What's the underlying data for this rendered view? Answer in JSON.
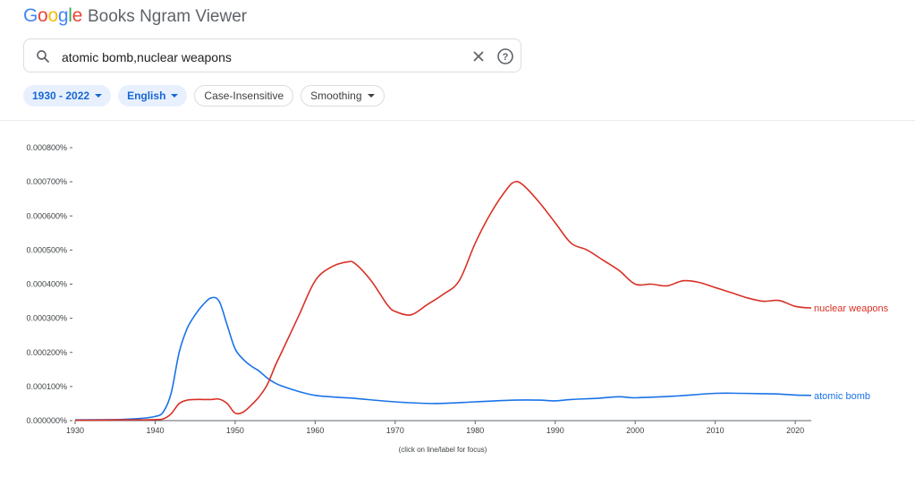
{
  "header": {
    "logo_letters": [
      {
        "char": "G",
        "color": "#4285F4"
      },
      {
        "char": "o",
        "color": "#EA4335"
      },
      {
        "char": "o",
        "color": "#FBBC05"
      },
      {
        "char": "g",
        "color": "#4285F4"
      },
      {
        "char": "l",
        "color": "#34A853"
      },
      {
        "char": "e",
        "color": "#EA4335"
      }
    ],
    "app_name": "Books Ngram Viewer"
  },
  "search": {
    "value": "atomic bomb,nuclear weapons",
    "icon": "search-icon",
    "clear_icon": "close-icon",
    "help_icon": "help-icon"
  },
  "filters": {
    "date_range": "1930 - 2022",
    "corpus": "English",
    "case": "Case-Insensitive",
    "smoothing": "Smoothing"
  },
  "hint": "(click on line/label for focus)",
  "chart_data": {
    "type": "line",
    "x_range": [
      1930,
      2022
    ],
    "ylim": [
      0,
      0.0008
    ],
    "y_ticks": [
      "0.000000%",
      "0.000100%",
      "0.000200%",
      "0.000300%",
      "0.000400%",
      "0.000500%",
      "0.000600%",
      "0.000700%",
      "0.000800%"
    ],
    "x_ticks": [
      "1930",
      "1940",
      "1950",
      "1960",
      "1970",
      "1980",
      "1990",
      "2000",
      "2010",
      "2020"
    ],
    "series": [
      {
        "name": "atomic bomb",
        "color": "#1a73e8",
        "x": [
          1930,
          1935,
          1938,
          1940,
          1941,
          1942,
          1943,
          1944,
          1945,
          1946,
          1947,
          1948,
          1949,
          1950,
          1951,
          1952,
          1953,
          1954,
          1955,
          1956,
          1958,
          1960,
          1963,
          1965,
          1970,
          1975,
          1980,
          1985,
          1988,
          1990,
          1992,
          1995,
          1998,
          2000,
          2005,
          2010,
          2013,
          2016,
          2018,
          2020,
          2022
        ],
        "y": [
          2e-06,
          3e-06,
          6e-06,
          1.2e-05,
          2.5e-05,
          8e-05,
          0.0002,
          0.00027,
          0.00031,
          0.00034,
          0.00036,
          0.00035,
          0.00028,
          0.00021,
          0.00018,
          0.00016,
          0.000145,
          0.000125,
          0.00011,
          0.0001,
          8.5e-05,
          7.4e-05,
          6.8e-05,
          6.5e-05,
          5.5e-05,
          5e-05,
          5.5e-05,
          6e-05,
          6e-05,
          5.8e-05,
          6.2e-05,
          6.5e-05,
          7e-05,
          6.7e-05,
          7.2e-05,
          8e-05,
          8e-05,
          7.9e-05,
          7.8e-05,
          7.5e-05,
          7.4e-05
        ]
      },
      {
        "name": "nuclear weapons",
        "color": "#d93025",
        "x": [
          1930,
          1935,
          1938,
          1940,
          1941,
          1942,
          1943,
          1944,
          1945,
          1946,
          1947,
          1948,
          1949,
          1950,
          1951,
          1952,
          1953,
          1954,
          1955,
          1956,
          1958,
          1960,
          1962,
          1964,
          1965,
          1967,
          1969,
          1970,
          1972,
          1974,
          1976,
          1978,
          1980,
          1982,
          1984,
          1985,
          1986,
          1988,
          1990,
          1992,
          1994,
          1996,
          1998,
          2000,
          2002,
          2004,
          2006,
          2008,
          2010,
          2012,
          2014,
          2016,
          2018,
          2020,
          2022
        ],
        "y": [
          1e-06,
          2e-06,
          2e-06,
          3e-06,
          5e-06,
          2e-05,
          5e-05,
          6e-05,
          6.2e-05,
          6.2e-05,
          6.2e-05,
          6.3e-05,
          5e-05,
          2.2e-05,
          2.5e-05,
          4.5e-05,
          7e-05,
          0.000105,
          0.00016,
          0.00021,
          0.00031,
          0.00041,
          0.00045,
          0.000465,
          0.00046,
          0.00041,
          0.00034,
          0.00032,
          0.00031,
          0.00034,
          0.00037,
          0.00041,
          0.00052,
          0.00061,
          0.00068,
          0.0007,
          0.00069,
          0.00064,
          0.00058,
          0.00052,
          0.0005,
          0.00047,
          0.00044,
          0.0004,
          0.0004,
          0.000395,
          0.00041,
          0.000405,
          0.00039,
          0.000375,
          0.00036,
          0.00035,
          0.000352,
          0.000335,
          0.00033
        ]
      }
    ]
  }
}
